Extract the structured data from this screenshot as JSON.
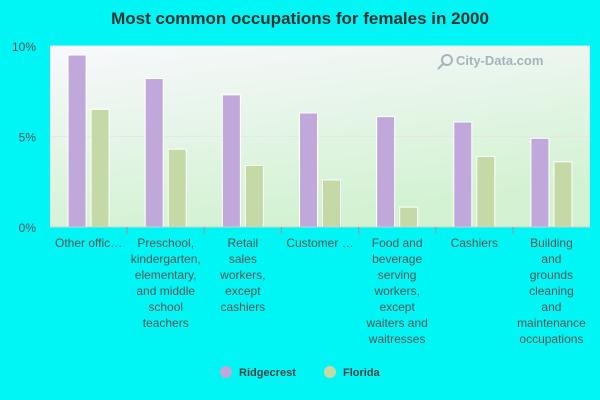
{
  "chart_data": {
    "type": "bar",
    "title": "Most common occupations for females in 2000",
    "xlabel": "",
    "ylabel": "",
    "ylim": [
      0,
      10
    ],
    "yticks": [
      {
        "value": 0,
        "label": "0%"
      },
      {
        "value": 5,
        "label": "5%"
      },
      {
        "value": 10,
        "label": "10%"
      }
    ],
    "categories": [
      [
        "Other offic…"
      ],
      [
        "Preschool,",
        "kindergarten,",
        "elementary,",
        "and middle",
        "school",
        "teachers"
      ],
      [
        "Retail",
        "sales",
        "workers,",
        "except",
        "cashiers"
      ],
      [
        "Customer …"
      ],
      [
        "Food and",
        "beverage",
        "serving",
        "workers,",
        "except",
        "waiters and",
        "waitresses"
      ],
      [
        "Cashiers"
      ],
      [
        "Building",
        "and",
        "grounds",
        "cleaning",
        "and",
        "maintenance",
        "occupations"
      ]
    ],
    "series": [
      {
        "name": "Ridgecrest",
        "color": "#c0a8da",
        "values": [
          9.5,
          8.2,
          7.3,
          6.3,
          6.1,
          5.8,
          4.9
        ]
      },
      {
        "name": "Florida",
        "color": "#c4d9a6",
        "values": [
          6.5,
          4.3,
          3.4,
          2.6,
          1.1,
          3.9,
          3.6
        ]
      }
    ],
    "legend_position": "bottom",
    "grid": true
  },
  "watermark": "City-Data.com",
  "colors": {
    "background": "#00f5f5",
    "plot_top": "#f8f8fc",
    "plot_bottom": "#d2f2d2"
  }
}
